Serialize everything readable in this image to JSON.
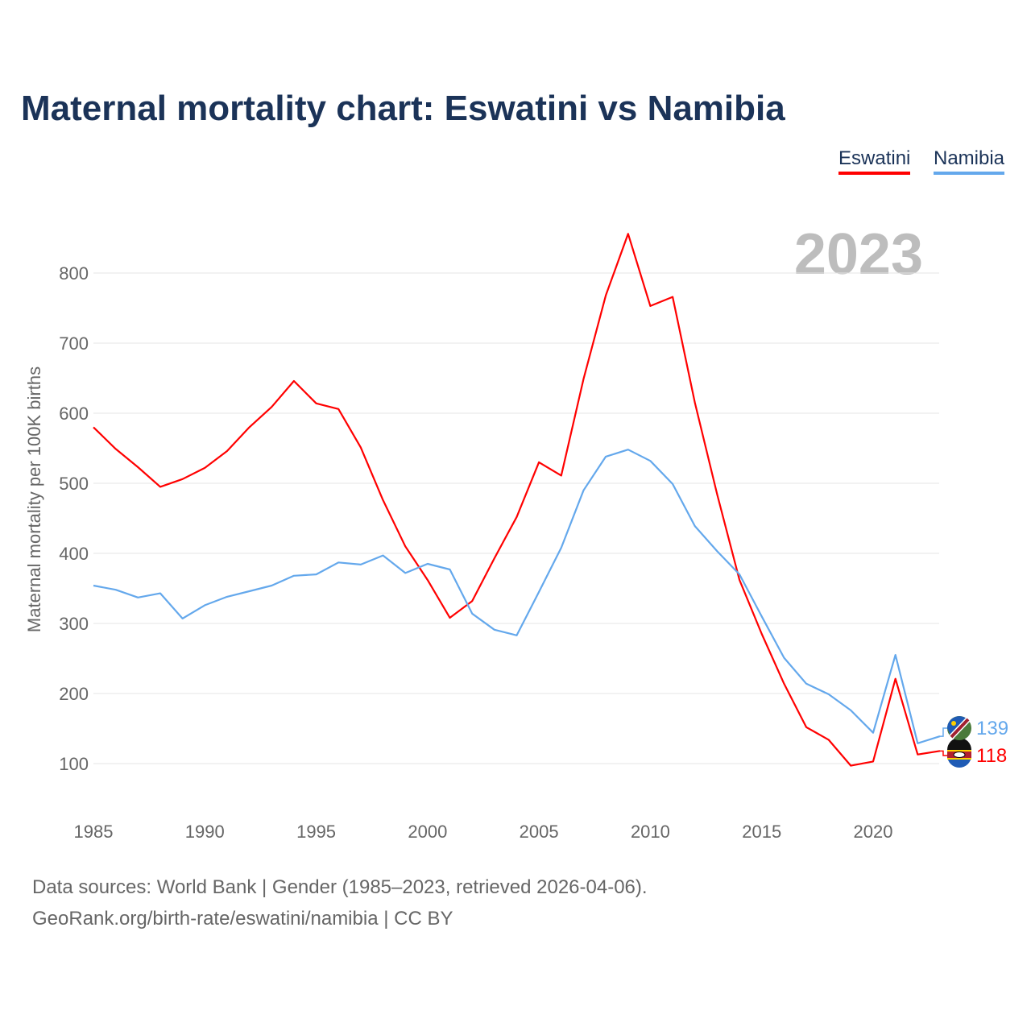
{
  "chart_data": {
    "type": "line",
    "title": "Maternal mortality chart: Eswatini vs Namibia",
    "xlabel": "",
    "ylabel": "Maternal mortality per 100K births",
    "year_watermark": "2023",
    "x": [
      1985,
      1986,
      1987,
      1988,
      1989,
      1990,
      1991,
      1992,
      1993,
      1994,
      1995,
      1996,
      1997,
      1998,
      1999,
      2000,
      2001,
      2002,
      2003,
      2004,
      2005,
      2006,
      2007,
      2008,
      2009,
      2010,
      2011,
      2012,
      2013,
      2014,
      2015,
      2016,
      2017,
      2018,
      2019,
      2020,
      2021,
      2022,
      2023
    ],
    "xlim": [
      1985,
      2023
    ],
    "ylim": [
      0,
      900
    ],
    "xticks": [
      "1985",
      "1990",
      "1995",
      "2000",
      "2005",
      "2010",
      "2015",
      "2020"
    ],
    "yticks": [
      "100",
      "200",
      "300",
      "400",
      "500",
      "600",
      "700",
      "800"
    ],
    "grid": true,
    "legend_placement": "top-right",
    "series": [
      {
        "name": "Eswatini",
        "color": "#ff0000",
        "end_label": "118",
        "values": [
          580,
          549,
          523,
          495,
          506,
          522,
          546,
          580,
          609,
          646,
          614,
          606,
          551,
          476,
          410,
          362,
          308,
          332,
          393,
          452,
          530,
          511,
          649,
          768,
          856,
          753,
          766,
          615,
          484,
          362,
          285,
          214,
          152,
          134,
          97,
          103,
          221,
          113,
          118
        ]
      },
      {
        "name": "Namibia",
        "color": "#64a8ec",
        "end_label": "139",
        "values": [
          354,
          348,
          337,
          343,
          307,
          326,
          338,
          346,
          354,
          368,
          370,
          387,
          384,
          397,
          372,
          385,
          377,
          314,
          291,
          283,
          345,
          408,
          490,
          538,
          548,
          532,
          499,
          439,
          403,
          370,
          310,
          251,
          214,
          199,
          176,
          144,
          255,
          129,
          139
        ]
      }
    ]
  },
  "footer": {
    "line1": "Data sources: World Bank | Gender (1985–2023, retrieved 2026-04-06).",
    "line2": "GeoRank.org/birth-rate/eswatini/namibia | CC BY"
  }
}
